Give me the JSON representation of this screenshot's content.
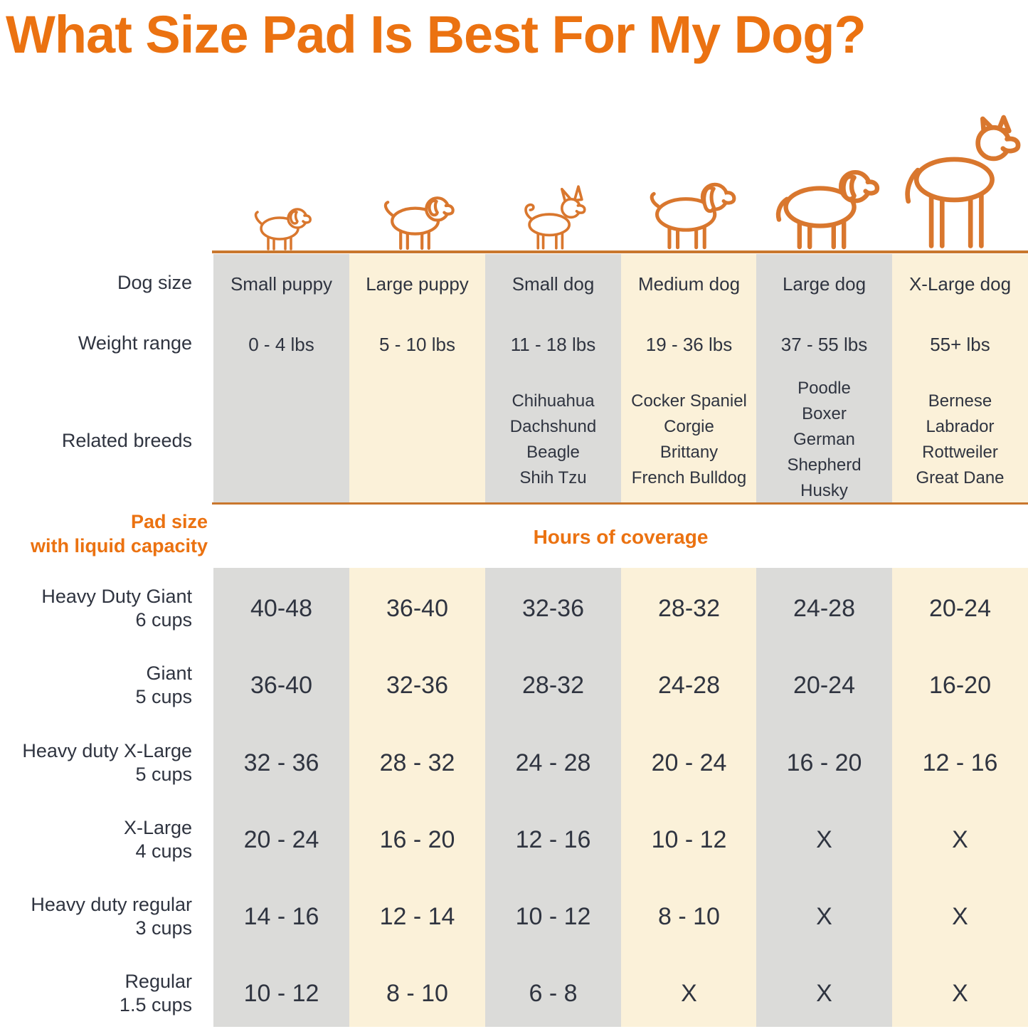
{
  "title": "What Size Pad Is Best For My Dog?",
  "colors": {
    "accent": "#EB7211",
    "illustration": "#D9772E",
    "column_gray": "#DBDBD9",
    "column_cream": "#FBF1D9",
    "text": "#2F3440"
  },
  "side_labels": {
    "dog_size": "Dog size",
    "weight_range": "Weight range",
    "related_breeds": "Related breeds",
    "pad_size_line1": "Pad size",
    "pad_size_line2": "with liquid capacity",
    "hours_header": "Hours of coverage"
  },
  "columns": [
    {
      "dog_size": "Small puppy",
      "weight": "0 - 4 lbs",
      "breeds": "",
      "icon": "small-puppy-dog-icon"
    },
    {
      "dog_size": "Large puppy",
      "weight": "5 - 10 lbs",
      "breeds": "",
      "icon": "large-puppy-dog-icon"
    },
    {
      "dog_size": "Small dog",
      "weight": "11 - 18 lbs",
      "breeds": "Chihuahua\nDachshund\nBeagle\nShih Tzu",
      "icon": "small-dog-icon"
    },
    {
      "dog_size": "Medium dog",
      "weight": "19 - 36 lbs",
      "breeds": "Cocker Spaniel\nCorgie\nBrittany\nFrench Bulldog",
      "icon": "medium-dog-icon"
    },
    {
      "dog_size": "Large dog",
      "weight": "37 - 55 lbs",
      "breeds": "Poodle\nBoxer\nGerman\nShepherd\nHusky",
      "icon": "large-dog-icon"
    },
    {
      "dog_size": "X-Large dog",
      "weight": "55+ lbs",
      "breeds": "Bernese\nLabrador\nRottweiler\nGreat Dane",
      "icon": "x-large-dog-icon"
    }
  ],
  "pad_rows": [
    {
      "name": "Heavy Duty Giant",
      "capacity": "6 cups",
      "hours": [
        "40-48",
        "36-40",
        "32-36",
        "28-32",
        "24-28",
        "20-24"
      ]
    },
    {
      "name": "Giant",
      "capacity": "5 cups",
      "hours": [
        "36-40",
        "32-36",
        "28-32",
        "24-28",
        "20-24",
        "16-20"
      ]
    },
    {
      "name": "Heavy duty X-Large",
      "capacity": "5 cups",
      "hours": [
        "32 - 36",
        "28 - 32",
        "24 - 28",
        "20 - 24",
        "16 - 20",
        "12 - 16"
      ]
    },
    {
      "name": "X-Large",
      "capacity": "4 cups",
      "hours": [
        "20 - 24",
        "16 - 20",
        "12 - 16",
        "10 - 12",
        "X",
        "X"
      ]
    },
    {
      "name": "Heavy duty regular",
      "capacity": "3 cups",
      "hours": [
        "14 - 16",
        "12 - 14",
        "10 - 12",
        "8 - 10",
        "X",
        "X"
      ]
    },
    {
      "name": "Regular",
      "capacity": "1.5 cups",
      "hours": [
        "10 - 12",
        "8 - 10",
        "6 - 8",
        "X",
        "X",
        "X"
      ]
    }
  ],
  "chart_data": {
    "type": "table",
    "title": "What Size Pad Is Best For My Dog?",
    "column_headers": [
      "Small puppy",
      "Large puppy",
      "Small dog",
      "Medium dog",
      "Large dog",
      "X-Large dog"
    ],
    "weight_ranges": [
      "0 - 4 lbs",
      "5 - 10 lbs",
      "11 - 18 lbs",
      "19 - 36 lbs",
      "37 - 55 lbs",
      "55+ lbs"
    ],
    "related_breeds": [
      [],
      [],
      [
        "Chihuahua",
        "Dachshund",
        "Beagle",
        "Shih Tzu"
      ],
      [
        "Cocker Spaniel",
        "Corgie",
        "Brittany",
        "French Bulldog"
      ],
      [
        "Poodle",
        "Boxer",
        "German Shepherd",
        "Husky"
      ],
      [
        "Bernese",
        "Labrador",
        "Rottweiler",
        "Great Dane"
      ]
    ],
    "value_section_header": "Hours of coverage",
    "rows": [
      {
        "pad": "Heavy Duty Giant",
        "capacity": "6 cups",
        "hours_of_coverage": [
          "40-48",
          "36-40",
          "32-36",
          "28-32",
          "24-28",
          "20-24"
        ]
      },
      {
        "pad": "Giant",
        "capacity": "5 cups",
        "hours_of_coverage": [
          "36-40",
          "32-36",
          "28-32",
          "24-28",
          "20-24",
          "16-20"
        ]
      },
      {
        "pad": "Heavy duty X-Large",
        "capacity": "5 cups",
        "hours_of_coverage": [
          "32 - 36",
          "28 - 32",
          "24 - 28",
          "20 - 24",
          "16 - 20",
          "12 - 16"
        ]
      },
      {
        "pad": "X-Large",
        "capacity": "4 cups",
        "hours_of_coverage": [
          "20 - 24",
          "16 - 20",
          "12 - 16",
          "10 - 12",
          "X",
          "X"
        ]
      },
      {
        "pad": "Heavy duty regular",
        "capacity": "3 cups",
        "hours_of_coverage": [
          "14 - 16",
          "12 - 14",
          "10 - 12",
          "8 - 10",
          "X",
          "X"
        ]
      },
      {
        "pad": "Regular",
        "capacity": "1.5 cups",
        "hours_of_coverage": [
          "10 - 12",
          "8 - 10",
          "6 - 8",
          "X",
          "X",
          "X"
        ]
      }
    ]
  }
}
